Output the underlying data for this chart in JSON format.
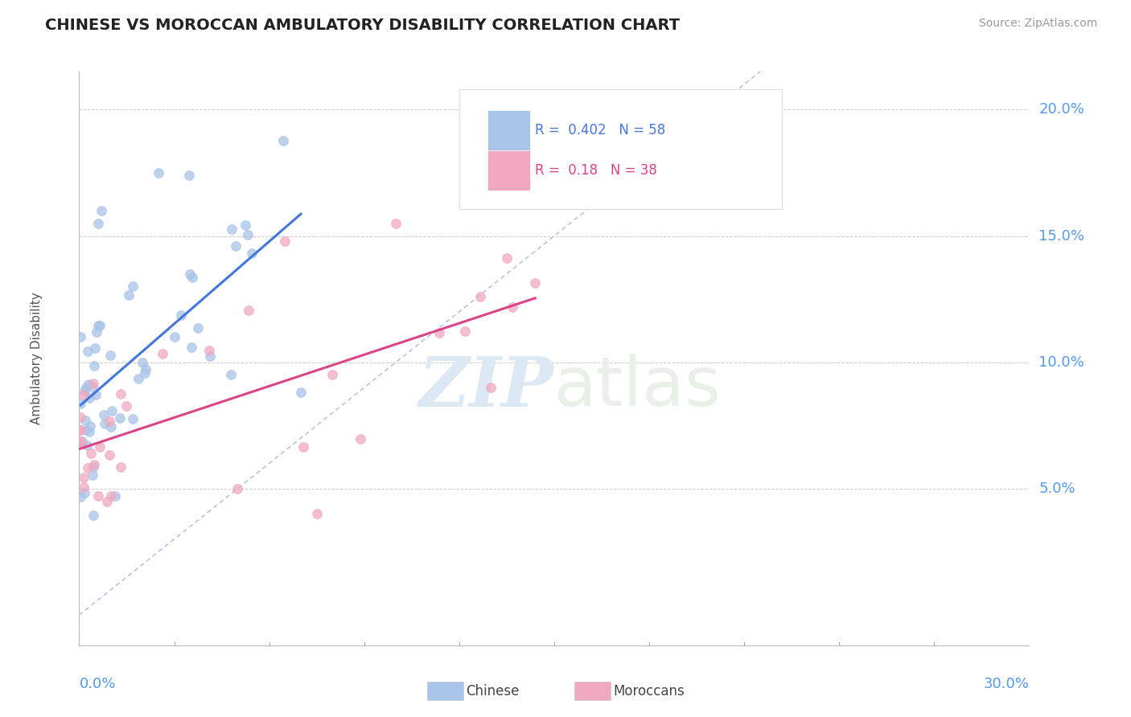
{
  "title": "CHINESE VS MOROCCAN AMBULATORY DISABILITY CORRELATION CHART",
  "source": "Source: ZipAtlas.com",
  "ylabel": "Ambulatory Disability",
  "xlim": [
    0.0,
    0.3
  ],
  "ylim": [
    -0.012,
    0.215
  ],
  "yticks": [
    0.05,
    0.1,
    0.15,
    0.2
  ],
  "ytick_labels": [
    "5.0%",
    "10.0%",
    "15.0%",
    "20.0%"
  ],
  "chinese_color": "#a8c4e8",
  "moroccan_color": "#f0a8c0",
  "chinese_line_color": "#4477dd",
  "moroccan_line_color": "#dd4488",
  "ref_line_color": "#aabbdd",
  "background_color": "#ffffff",
  "grid_color": "#cccccc",
  "R_chinese": 0.402,
  "N_chinese": 58,
  "R_moroccan": 0.18,
  "N_moroccan": 38,
  "watermark_zip": "ZIP",
  "watermark_atlas": "atlas",
  "tick_color": "#5599ee"
}
